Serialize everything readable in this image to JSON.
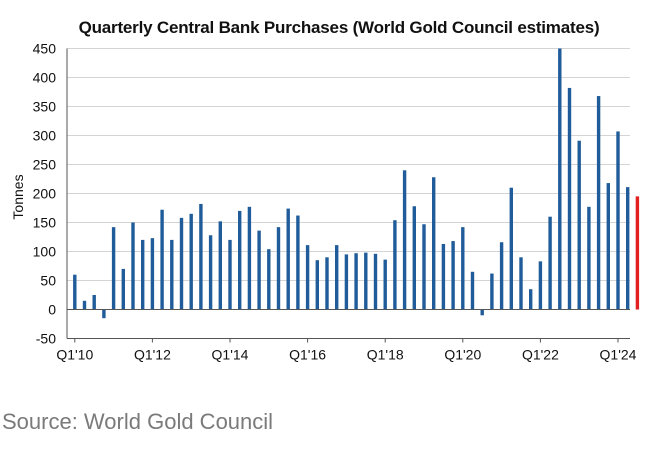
{
  "chart_data": {
    "type": "bar",
    "title": "Quarterly Central Bank Purchases (World Gold Council estimates)",
    "xlabel": "",
    "ylabel": "Tonnes",
    "ylim": [
      -50,
      450
    ],
    "yticks": [
      -50,
      0,
      50,
      100,
      150,
      200,
      250,
      300,
      350,
      400,
      450
    ],
    "xtick_labels": [
      "Q1'10",
      "Q1'12",
      "Q1'14",
      "Q1'16",
      "Q1'18",
      "Q1'20",
      "Q1'22",
      "Q1'24"
    ],
    "grid": "horizontal",
    "categories": [
      "Q1'10",
      "Q2'10",
      "Q3'10",
      "Q4'10",
      "Q1'11",
      "Q2'11",
      "Q3'11",
      "Q4'11",
      "Q1'12",
      "Q2'12",
      "Q3'12",
      "Q4'12",
      "Q1'13",
      "Q2'13",
      "Q3'13",
      "Q4'13",
      "Q1'14",
      "Q2'14",
      "Q3'14",
      "Q4'14",
      "Q1'15",
      "Q2'15",
      "Q3'15",
      "Q4'15",
      "Q1'16",
      "Q2'16",
      "Q3'16",
      "Q4'16",
      "Q1'17",
      "Q2'17",
      "Q3'17",
      "Q4'17",
      "Q1'18",
      "Q2'18",
      "Q3'18",
      "Q4'18",
      "Q1'19",
      "Q2'19",
      "Q3'19",
      "Q4'19",
      "Q1'20",
      "Q2'20",
      "Q3'20",
      "Q4'20",
      "Q1'21",
      "Q2'21",
      "Q3'21",
      "Q4'21",
      "Q1'22",
      "Q2'22",
      "Q3'22",
      "Q4'22",
      "Q1'23",
      "Q2'23",
      "Q3'23",
      "Q4'23",
      "Q1'24",
      "Q2'24",
      "Q3'24"
    ],
    "values": [
      60,
      15,
      25,
      -15,
      142,
      70,
      150,
      120,
      123,
      172,
      120,
      158,
      165,
      182,
      128,
      152,
      120,
      170,
      177,
      136,
      104,
      142,
      174,
      162,
      111,
      85,
      90,
      111,
      95,
      97,
      98,
      96,
      86,
      154,
      240,
      178,
      147,
      228,
      113,
      118,
      142,
      65,
      -10,
      62,
      116,
      210,
      90,
      35,
      83,
      160,
      460,
      382,
      291,
      177,
      368,
      218,
      307,
      211,
      195
    ],
    "colors": {
      "bar": "#1f5c99",
      "highlight": "#e21f1f",
      "grid": "#d4d4d4",
      "axis": "#555555"
    },
    "highlighted_bars": [],
    "annotations": []
  },
  "layout_note": "",
  "source": "Source: World Gold Council"
}
